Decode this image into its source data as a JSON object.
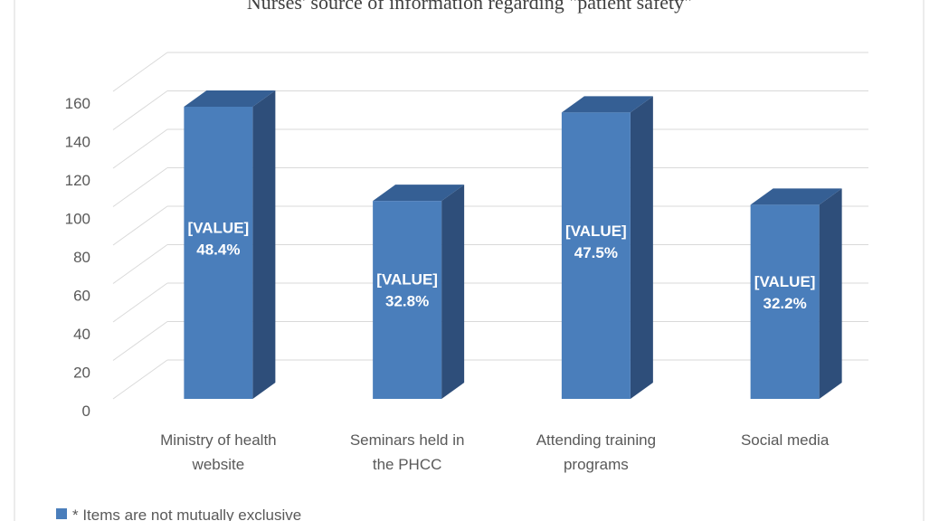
{
  "chart_data": {
    "type": "bar",
    "title": "Nurses' source of information regarding \"patient safety\"",
    "categories": [
      [
        "Ministry of health",
        "website"
      ],
      [
        "Seminars held in",
        "the PHCC"
      ],
      [
        "Attending training",
        "programs"
      ],
      [
        "Social media"
      ]
    ],
    "values": [
      152,
      103,
      149,
      101
    ],
    "data_labels": [
      [
        "[VALUE]",
        "48.4%"
      ],
      [
        "[VALUE]",
        "32.8%"
      ],
      [
        "[VALUE]",
        "47.5%"
      ],
      [
        "[VALUE]",
        "32.2%"
      ]
    ],
    "yticks": [
      "0",
      "20",
      "40",
      "60",
      "80",
      "100",
      "120",
      "140",
      "160"
    ],
    "ylim": [
      0,
      160
    ],
    "grid": true,
    "legend_position": "bottom-left",
    "legend_text": "* Items are not mutually exclusive",
    "colors": {
      "front": "#4a7ebb",
      "side": "#2e4e7a",
      "top": "#355f94",
      "grid": "#d9d9d9",
      "frame": "#d9d9d9"
    }
  }
}
